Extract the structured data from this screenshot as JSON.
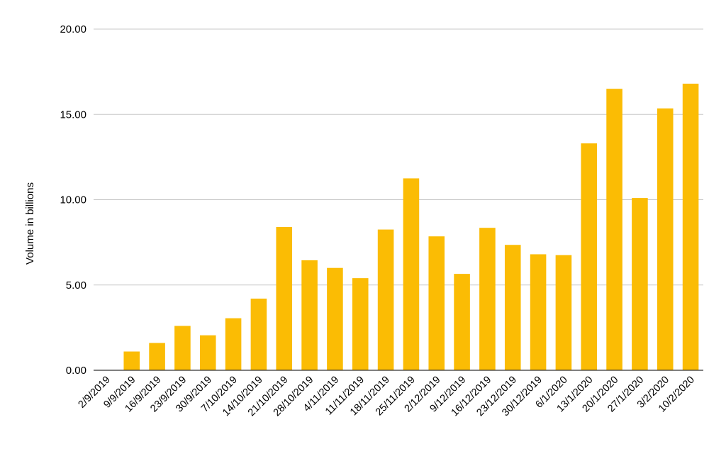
{
  "chart_data": {
    "type": "bar",
    "ylabel": "Volume in billions",
    "xlabel": "",
    "ylim": [
      0,
      20
    ],
    "yticks": [
      "0.00",
      "5.00",
      "10.00",
      "15.00",
      "20.00"
    ],
    "grid": true,
    "bar_color": "#FBBC04",
    "categories": [
      "2/9/2019",
      "9/9/2019",
      "16/9/2019",
      "23/9/2019",
      "30/9/2019",
      "7/10/2019",
      "14/10/2019",
      "21/10/2019",
      "28/10/2019",
      "4/11/2019",
      "11/11/2019",
      "18/11/2019",
      "25/11/2019",
      "2/12/2019",
      "9/12/2019",
      "16/12/2019",
      "23/12/2019",
      "30/12/2019",
      "6/1/2020",
      "13/1/2020",
      "20/1/2020",
      "27/1/2020",
      "3/2/2020",
      "10/2/2020"
    ],
    "values": [
      0,
      1.1,
      1.6,
      2.6,
      2.05,
      3.05,
      4.2,
      8.4,
      6.45,
      6.0,
      5.4,
      8.25,
      11.25,
      7.85,
      5.65,
      8.35,
      7.35,
      6.8,
      6.75,
      13.3,
      16.5,
      10.1,
      15.35,
      16.8
    ]
  }
}
